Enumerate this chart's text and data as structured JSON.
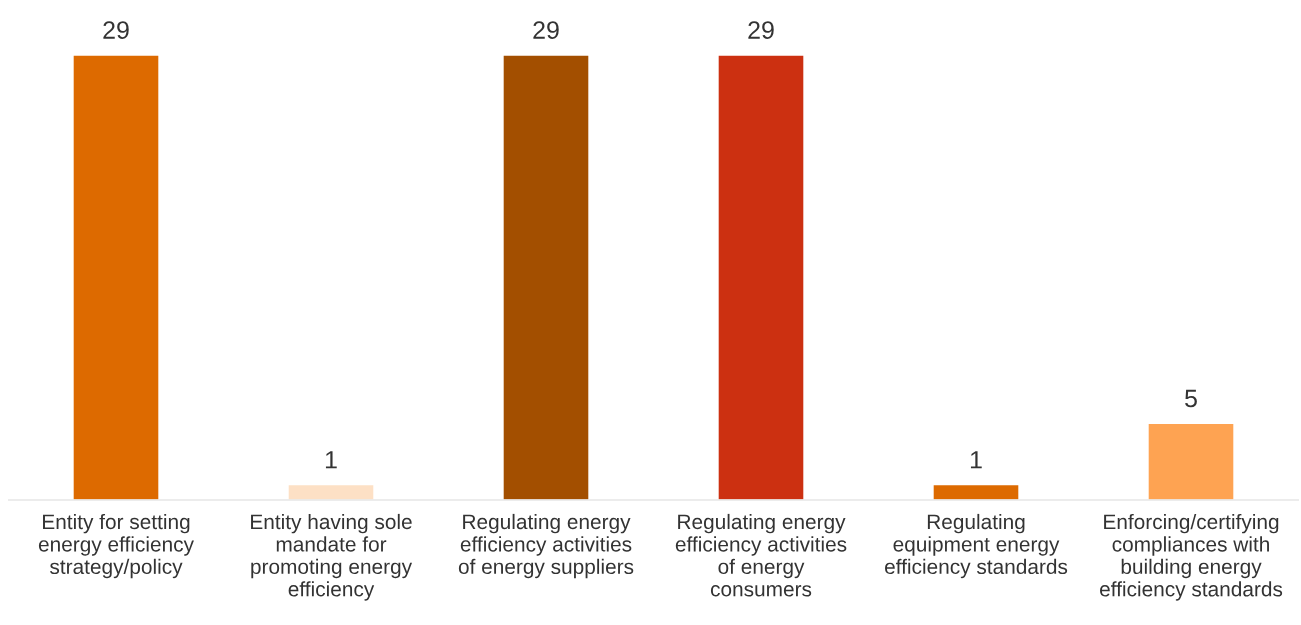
{
  "chart_data": {
    "type": "bar",
    "categories": [
      "Entity for setting\nenergy efficiency\nstrategy/policy",
      "Entity having sole\nmandate for\npromoting energy\nefficiency",
      "Regulating energy\nefficiency activities\nof energy suppliers",
      "Regulating energy\nefficiency activities\nof energy\nconsumers",
      "Regulating\nequipment energy\nefficiency standards",
      "Enforcing/certifying\ncompliances with\nbuilding energy\nefficiency standards"
    ],
    "values": [
      29,
      1,
      29,
      29,
      1,
      5
    ],
    "colors": [
      "#dd6a00",
      "#fde0c5",
      "#a34f00",
      "#cc3011",
      "#dd6a00",
      "#fea352"
    ],
    "data_labels": true
  }
}
